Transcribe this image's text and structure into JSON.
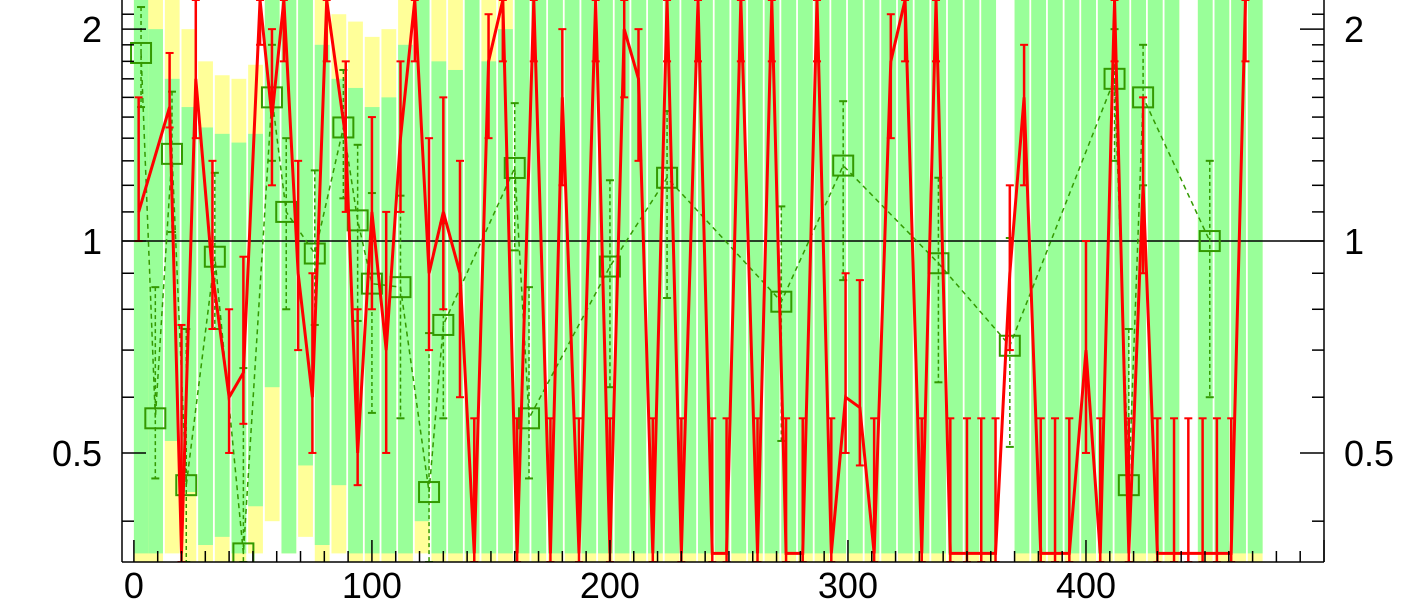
{
  "chart_data": {
    "type": "line",
    "title": "",
    "xlabel": "",
    "ylabel": "",
    "xlim": [
      -5,
      500
    ],
    "ylim": [
      0.35,
      2.2
    ],
    "y_scale": "log",
    "x_ticks": [
      0,
      100,
      200,
      300,
      400
    ],
    "x_tick_labels": [
      "0",
      "100",
      "200",
      "300",
      "400"
    ],
    "y_ticks": [
      0.5,
      1,
      2
    ],
    "y_tick_labels": [
      "0.5",
      "1",
      "2"
    ],
    "reference_line": 1,
    "colors": {
      "band_inner": "#99ff99",
      "band_outer": "#ffff99",
      "series_red": "#ff0000",
      "series_green": "#339900"
    },
    "band_x": [
      0,
      6,
      13,
      20,
      27,
      34,
      41,
      48,
      55,
      62,
      69,
      76,
      83,
      90,
      97,
      104,
      111,
      118,
      125,
      132,
      139,
      146,
      153,
      160,
      167,
      174,
      181,
      188,
      195,
      202,
      209,
      216,
      223,
      230,
      237,
      244,
      251,
      258,
      265,
      272,
      279,
      286,
      293,
      300,
      307,
      314,
      321,
      328,
      335,
      342,
      349,
      356,
      363,
      370,
      377,
      384,
      391,
      398,
      405,
      412,
      419,
      426,
      433,
      440,
      447,
      454,
      461,
      468
    ],
    "band_inner_low": [
      0.36,
      0.36,
      0.52,
      0.44,
      0.37,
      0.38,
      0.36,
      0.42,
      0.62,
      0.36,
      0.48,
      0.37,
      0.45,
      0.36,
      0.36,
      0.36,
      0.36,
      0.4,
      0.36,
      0.36,
      0.36,
      0.36,
      0.36,
      0.36,
      0.36,
      0.36,
      0.36,
      0.36,
      0.36,
      0.36,
      0.36,
      0.36,
      0.36,
      0.36,
      0.36,
      0.36,
      0.36,
      0.36,
      0.36,
      0.36,
      0.36,
      0.36,
      0.36,
      0.36,
      0.36,
      0.36,
      0.36,
      0.36,
      0.36,
      0.36,
      0.36,
      0.36,
      0.36,
      0.36,
      0.36,
      0.36,
      0.36,
      0.36,
      0.36,
      0.36,
      0.36,
      0.36,
      0.36,
      0.36,
      0.36,
      0.36,
      0.36,
      0.36
    ],
    "band_inner_high": [
      2.2,
      2.0,
      1.7,
      1.55,
      1.45,
      1.42,
      1.38,
      1.42,
      2.2,
      2.2,
      2.2,
      1.9,
      1.7,
      1.65,
      1.55,
      1.6,
      1.9,
      2.2,
      1.8,
      1.75,
      2.2,
      1.8,
      2.0,
      2.2,
      2.2,
      2.2,
      2.2,
      2.2,
      2.2,
      2.2,
      2.2,
      2.2,
      2.2,
      2.2,
      2.2,
      2.2,
      2.2,
      2.2,
      2.2,
      2.2,
      2.2,
      2.2,
      2.2,
      2.2,
      2.2,
      2.2,
      2.2,
      2.2,
      2.2,
      2.2,
      2.2,
      2.2,
      2.2,
      2.2,
      2.2,
      2.2,
      2.2,
      2.2,
      2.2,
      2.2,
      2.2,
      2.2,
      2.2,
      2.2,
      2.2,
      2.2,
      2.2,
      2.2
    ],
    "band_outer_low": [
      0.35,
      0.35,
      0.36,
      0.35,
      0.35,
      0.35,
      0.35,
      0.36,
      0.4,
      0.36,
      0.38,
      0.35,
      0.36,
      0.35,
      0.35,
      0.35,
      0.35,
      0.36,
      0.35,
      0.35,
      0.35,
      0.35,
      0.35,
      0.35,
      0.35,
      0.35,
      0.35,
      0.35,
      0.35,
      0.35,
      0.35,
      0.35,
      0.35,
      0.35,
      0.35,
      0.35,
      0.35,
      0.35,
      0.35,
      0.35,
      0.35,
      0.35,
      0.35,
      0.35,
      0.35,
      0.35,
      0.35,
      0.35,
      0.35,
      0.35,
      0.35,
      0.35,
      0.35,
      0.35,
      0.35,
      0.35,
      0.35,
      0.35,
      0.35,
      0.35,
      0.35,
      0.35,
      0.35,
      0.35,
      0.35,
      0.35,
      0.35,
      0.35
    ],
    "band_outer_high": [
      2.2,
      2.2,
      2.2,
      2.0,
      1.8,
      1.72,
      1.7,
      1.78,
      2.2,
      2.2,
      2.2,
      2.2,
      2.1,
      2.05,
      1.95,
      2.0,
      2.2,
      2.2,
      2.2,
      2.2,
      2.2,
      2.2,
      2.2,
      2.2,
      2.2,
      2.2,
      2.2,
      2.2,
      2.2,
      2.2,
      2.2,
      2.2,
      2.2,
      2.2,
      2.2,
      2.2,
      2.2,
      2.2,
      2.2,
      2.2,
      2.2,
      2.2,
      2.2,
      2.2,
      2.2,
      2.2,
      2.2,
      2.2,
      2.2,
      2.2,
      2.2,
      2.2,
      2.2,
      2.2,
      2.2,
      2.2,
      2.2,
      2.2,
      2.2,
      2.2,
      2.2,
      2.2,
      2.2,
      2.2,
      2.2,
      2.2,
      2.2,
      2.2
    ],
    "band_gaps": [
      [
        360,
        366
      ],
      [
        437,
        446
      ]
    ],
    "series": [
      {
        "style": "red-solid",
        "x": [
          2,
          15,
          20,
          26,
          33,
          40,
          46,
          53,
          58,
          63,
          69,
          75,
          81,
          89,
          94,
          100,
          106,
          112,
          118,
          124,
          130,
          137,
          143,
          149,
          155,
          161,
          168,
          175,
          180,
          187,
          194,
          200,
          206,
          212,
          218,
          224,
          230,
          237,
          243,
          249,
          255,
          262,
          268,
          274,
          281,
          287,
          293,
          299,
          305,
          311,
          318,
          324,
          331,
          337,
          343,
          350,
          356,
          362,
          368,
          374,
          381,
          387,
          393,
          400,
          406,
          412,
          418,
          424,
          430,
          437,
          443,
          449,
          455,
          461,
          467
        ],
        "y": [
          1.1,
          1.55,
          0.36,
          1.7,
          0.9,
          0.6,
          0.65,
          2.2,
          1.5,
          2.2,
          0.9,
          0.6,
          2.2,
          1.4,
          0.5,
          1.1,
          0.7,
          1.4,
          2.2,
          0.9,
          1.1,
          0.9,
          0.36,
          1.8,
          2.2,
          0.36,
          2.2,
          0.36,
          1.6,
          0.36,
          2.2,
          0.36,
          2.0,
          1.7,
          0.36,
          2.2,
          0.36,
          2.2,
          0.36,
          0.36,
          2.2,
          0.36,
          2.2,
          0.36,
          0.36,
          2.2,
          0.36,
          0.6,
          0.58,
          0.36,
          1.8,
          2.2,
          0.36,
          2.2,
          0.36,
          0.36,
          0.36,
          0.36,
          0.9,
          1.6,
          0.36,
          0.36,
          0.36,
          0.7,
          0.36,
          2.2,
          0.36,
          1.2,
          0.36,
          0.36,
          0.36,
          0.36,
          0.36,
          0.36,
          2.2
        ],
        "err_low": [
          0.1,
          0.1,
          0.05,
          0.3,
          0.15,
          0.1,
          0.1,
          0.3,
          0.3,
          0.4,
          0.2,
          0.1,
          0.4,
          0.3,
          0.05,
          0.3,
          0.2,
          0.3,
          0.4,
          0.2,
          0.3,
          0.3,
          0.05,
          0.4,
          0.4,
          0.05,
          0.4,
          0.05,
          0.4,
          0.05,
          0.4,
          0.05,
          0.4,
          0.4,
          0.05,
          0.4,
          0.05,
          0.4,
          0.05,
          0.05,
          0.4,
          0.05,
          0.4,
          0.05,
          0.05,
          0.4,
          0.05,
          0.1,
          0.1,
          0.05,
          0.4,
          0.4,
          0.05,
          0.4,
          0.05,
          0.05,
          0.05,
          0.05,
          0.2,
          0.4,
          0.05,
          0.05,
          0.05,
          0.2,
          0.05,
          0.4,
          0.05,
          0.3,
          0.05,
          0.05,
          0.05,
          0.05,
          0.05,
          0.05,
          0.4
        ],
        "err_high": [
          0.5,
          0.3,
          0.4,
          0.5,
          0.4,
          0.2,
          0.3,
          0.3,
          0.5,
          0.3,
          0.4,
          0.3,
          0.3,
          0.4,
          0.3,
          0.4,
          0.4,
          0.4,
          0.3,
          0.5,
          0.5,
          0.4,
          0.2,
          0.3,
          0.3,
          0.2,
          0.3,
          0.2,
          0.4,
          0.2,
          0.3,
          0.2,
          0.3,
          0.3,
          0.2,
          0.3,
          0.2,
          0.3,
          0.2,
          0.2,
          0.3,
          0.2,
          0.3,
          0.2,
          0.2,
          0.3,
          0.2,
          0.3,
          0.3,
          0.2,
          0.3,
          0.3,
          0.2,
          0.3,
          0.2,
          0.2,
          0.2,
          0.2,
          0.3,
          0.3,
          0.2,
          0.2,
          0.2,
          0.3,
          0.2,
          0.3,
          0.2,
          0.4,
          0.2,
          0.2,
          0.2,
          0.2,
          0.2,
          0.2,
          0.3
        ]
      },
      {
        "style": "green-dashed-square",
        "x": [
          3,
          9,
          16,
          22,
          34,
          46,
          58,
          64,
          76,
          88,
          94,
          100,
          112,
          124,
          130,
          160,
          166,
          200,
          224,
          272,
          298,
          338,
          368,
          412,
          418,
          424,
          452
        ],
        "y": [
          1.85,
          0.56,
          1.33,
          0.45,
          0.95,
          0.36,
          1.6,
          1.1,
          0.96,
          1.45,
          1.07,
          0.87,
          0.86,
          0.44,
          0.76,
          1.27,
          0.56,
          0.92,
          1.23,
          0.82,
          1.28,
          0.93,
          0.71,
          1.7,
          0.45,
          1.6,
          1.0
        ],
        "err_low": [
          0.3,
          0.1,
          0.3,
          0.1,
          0.2,
          0.02,
          0.3,
          0.3,
          0.2,
          0.3,
          0.3,
          0.3,
          0.3,
          0.1,
          0.2,
          0.3,
          0.1,
          0.3,
          0.4,
          0.3,
          0.4,
          0.3,
          0.2,
          0.4,
          0.1,
          0.4,
          0.4
        ],
        "err_high": [
          0.3,
          0.3,
          0.3,
          0.3,
          0.3,
          0.3,
          0.3,
          0.3,
          0.3,
          0.3,
          0.3,
          0.3,
          0.3,
          0.3,
          0.3,
          0.3,
          0.3,
          0.3,
          0.3,
          0.3,
          0.3,
          0.3,
          0.3,
          0.3,
          0.3,
          0.3,
          0.3
        ]
      }
    ]
  }
}
